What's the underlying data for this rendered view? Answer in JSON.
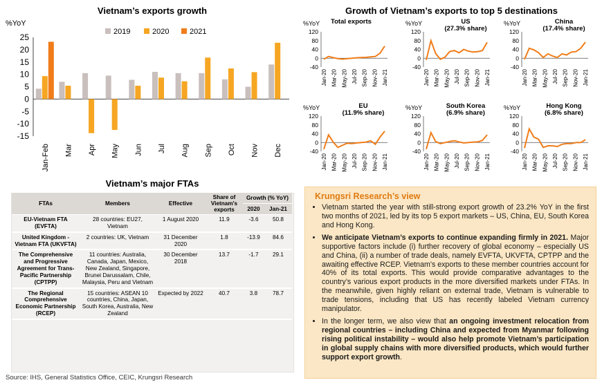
{
  "chart_data": [
    {
      "type": "bar",
      "title": "Vietnam’s exports growth",
      "ylabel": "%YoY",
      "ylim": [
        -15,
        25
      ],
      "yticks": [
        25,
        20,
        15,
        10,
        5,
        0,
        -5,
        -10,
        -15
      ],
      "categories": [
        "Jan-Feb",
        "Mar",
        "Apr",
        "May",
        "Jun",
        "Jul",
        "Aug",
        "Sep",
        "Oct",
        "Nov",
        "Dec"
      ],
      "series": [
        {
          "name": "2019",
          "color": "#c9bfbd",
          "values": [
            4.2,
            7.0,
            10.5,
            9.5,
            7.8,
            11.0,
            10.5,
            10.5,
            8.0,
            5.0,
            14.0
          ]
        },
        {
          "name": "2020",
          "color": "#f6a623",
          "values": [
            9.3,
            5.4,
            -13.8,
            -12.5,
            5.4,
            8.7,
            7.2,
            16.8,
            12.4,
            10.9,
            22.8
          ]
        },
        {
          "name": "2021",
          "color": "#f07d1a",
          "values": [
            23.2,
            null,
            null,
            null,
            null,
            null,
            null,
            null,
            null,
            null,
            null
          ]
        }
      ],
      "legend": "top",
      "grid": false
    },
    {
      "type": "line",
      "title": "Growth of Vietnam’s exports to top 5 destinations",
      "color": "#f07d1a",
      "x_ticks": [
        "Jan-20",
        "Mar-20",
        "May-20",
        "Jul-20",
        "Sep-20",
        "Nov-20",
        "Jan-21"
      ],
      "ylim": [
        -40,
        120
      ],
      "yticks": [
        120,
        80,
        40,
        0,
        -40
      ],
      "ylabel": "%YoY",
      "panels": [
        {
          "name": "Total exports",
          "values": [
            -5,
            8,
            3,
            -2,
            -4,
            -2,
            0,
            2,
            3,
            4,
            6,
            8,
            23,
            55
          ]
        },
        {
          "name": "US\n(27.3% share)",
          "values": [
            -8,
            80,
            22,
            -5,
            5,
            30,
            35,
            25,
            40,
            32,
            28,
            30,
            35,
            72
          ]
        },
        {
          "name": "China\n(17.4% share)",
          "values": [
            -5,
            45,
            38,
            25,
            3,
            20,
            10,
            3,
            20,
            15,
            28,
            30,
            45,
            73
          ]
        },
        {
          "name": "EU\n(11.9% share)",
          "values": [
            -30,
            35,
            2,
            -22,
            -12,
            -3,
            -5,
            -2,
            0,
            2,
            8,
            -8,
            25,
            52
          ]
        },
        {
          "name": "South Korea\n(6.9% share)",
          "values": [
            -30,
            45,
            5,
            -5,
            0,
            5,
            8,
            3,
            -2,
            0,
            2,
            3,
            10,
            35
          ]
        },
        {
          "name": "Hong Kong\n(6.8% share)",
          "values": [
            -25,
            62,
            25,
            15,
            -22,
            -15,
            -15,
            -18,
            -8,
            -5,
            -5,
            0,
            0,
            13
          ]
        }
      ]
    }
  ],
  "table": {
    "title": "Vietnam’s major FTAs",
    "headers": {
      "fta": "FTAs",
      "members": "Members",
      "effective": "Effective",
      "share": "Share of Vietnam's exports",
      "growth": "Growth (% YoY)",
      "y2020": "2020",
      "jan21": "Jan-21"
    },
    "rows": [
      {
        "fta": "EU-Vietnam FTA (EVFTA)",
        "members": "28 countries: EU27, Vietnam",
        "effective": "1 August 2020",
        "share": "11.9",
        "g2020": "-3.6",
        "jan21": "50.8"
      },
      {
        "fta": "United Kingdom - Vietnam FTA (UKVFTA)",
        "members": "2 countries: UK, Vietnam",
        "effective": "31 December 2020",
        "share": "1.8",
        "g2020": "-13.9",
        "jan21": "84.6"
      },
      {
        "fta": "The Comprehensive and Progressive Agreement for Trans-Pacific Partnership (CPTPP)",
        "members": "11 countries: Australia, Canada, Japan, Mexico, New Zealand, Singapore, Brunei Darussalam, Chile, Malaysia, Peru and Vietnam",
        "effective": "30 December 2018",
        "share": "13.7",
        "g2020": "-1.7",
        "jan21": "29.1"
      },
      {
        "fta": "The Regional Comprehensive Economic Partnership (RCEP)",
        "members": "15 countries: ASEAN 10 countries, China, Japan, South Korea, Australia, New Zealand",
        "effective": "Expected by 2022",
        "share": "40.7",
        "g2020": "3.8",
        "jan21": "78.7"
      }
    ]
  },
  "view": {
    "title": "Krungsri Research’s view",
    "b1": "Vietnam started the year with still-strong export growth of 23.2% YoY in the first two months of 2021, led by its top 5 export markets – US, China, EU, South Korea and Hong Kong.",
    "b2_bold": "We anticipate Vietnam’s exports to continue expanding firmly in 2021.",
    "b2_rest": " Major supportive factors include (i) further recovery of global economy – especially US and China, (ii) a number of trade deals, namely EVFTA, UKVFTA, CPTPP and the awaiting effective RCEP. Vietnam’s exports to these member countries account for 40% of its total exports. This would provide comparative advantages to the country’s various export products in the more diversified markets under FTAs. In the meanwhile, given highly reliant on external trade, Vietnam is vulnerable to trade tensions, including that US has recently labeled Vietnam currency manipulator.",
    "b3_start": "In the longer term, we also view that ",
    "b3_bold": "an ongoing investment relocation from regional countries – including China and expected from Myanmar following rising political instability – would also help promote Vietnam’s participation in global supply chains with more diversified products, which would further support export growth",
    "b3_end": "."
  },
  "source": "Source: IHS, General Statistics Office, CEIC, Krungsri Research"
}
